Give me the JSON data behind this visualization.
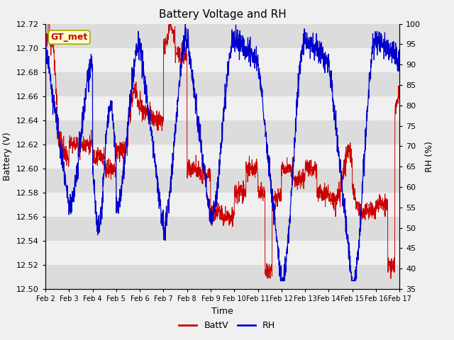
{
  "title": "Battery Voltage and RH",
  "xlabel": "Time",
  "ylabel_left": "Battery (V)",
  "ylabel_right": "RH (%)",
  "annotation": "GT_met",
  "batt_ylim": [
    12.5,
    12.72
  ],
  "rh_ylim": [
    35,
    100
  ],
  "batt_yticks": [
    12.5,
    12.52,
    12.54,
    12.56,
    12.58,
    12.6,
    12.62,
    12.64,
    12.66,
    12.68,
    12.7,
    12.72
  ],
  "rh_yticks": [
    35,
    40,
    45,
    50,
    55,
    60,
    65,
    70,
    75,
    80,
    85,
    90,
    95,
    100
  ],
  "x_labels": [
    "Feb 2",
    "Feb 3",
    "Feb 4",
    "Feb 5",
    "Feb 6",
    "Feb 7",
    "Feb 8",
    "Feb 9",
    "Feb 10",
    "Feb 11",
    "Feb 12",
    "Feb 13",
    "Feb 14",
    "Feb 15",
    "Feb 16",
    "Feb 17"
  ],
  "batt_color": "#cc0000",
  "rh_color": "#0000cc",
  "background_color": "#f0f0f0",
  "strip_color_dark": "#dcdcdc",
  "strip_color_light": "#f0f0f0",
  "title_fontsize": 11,
  "label_fontsize": 9,
  "tick_fontsize": 8,
  "legend_fontsize": 9,
  "annotation_fontsize": 9,
  "annotation_bg": "#ffffcc",
  "annotation_border": "#aaaa00"
}
